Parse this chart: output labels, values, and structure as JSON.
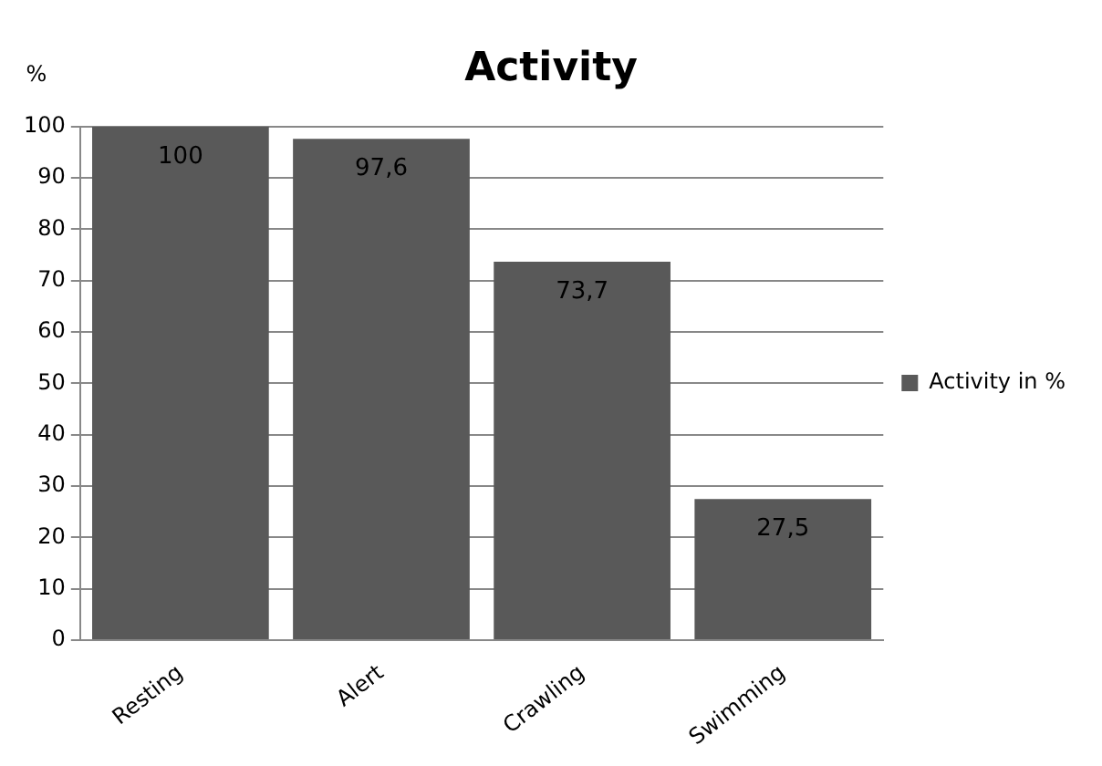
{
  "chart_data": {
    "type": "bar",
    "title": "Activity",
    "ylabel": "%",
    "categories": [
      "Resting",
      "Alert",
      "Crawling",
      "Swimming"
    ],
    "series": [
      {
        "name": "Activity in %",
        "color": "#595959",
        "values": [
          100,
          97.6,
          73.7,
          27.5
        ],
        "value_labels": [
          "100",
          "97,6",
          "73,7",
          "27,5"
        ]
      }
    ],
    "ylim": [
      0,
      100
    ],
    "yticks": [
      0,
      10,
      20,
      30,
      40,
      50,
      60,
      70,
      80,
      90,
      100
    ],
    "grid": "y",
    "legend": "right"
  }
}
